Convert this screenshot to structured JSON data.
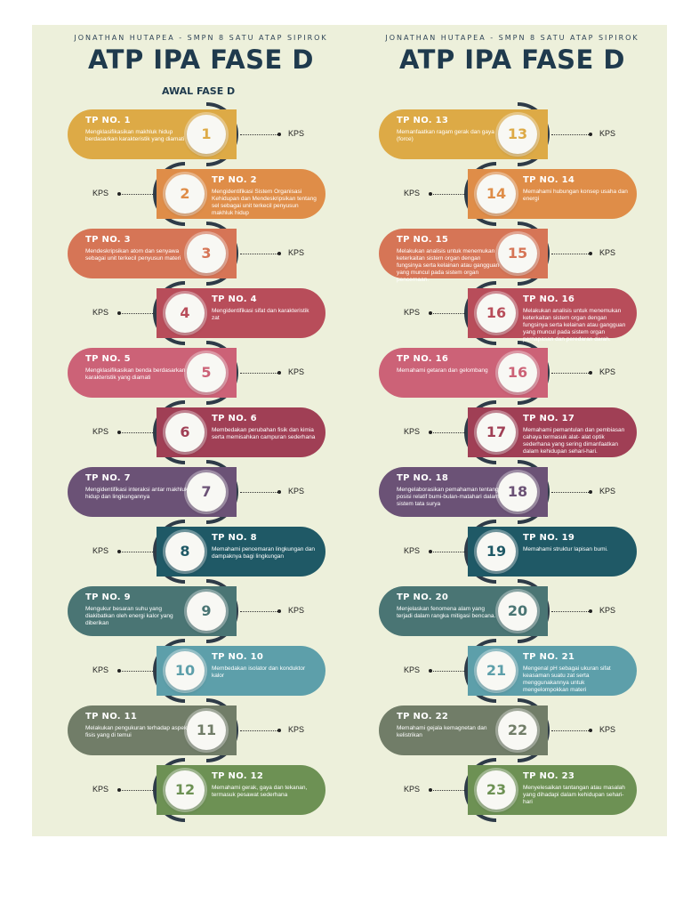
{
  "colors": [
    "#ddaa46",
    "#df8d48",
    "#d67556",
    "#b84d5a",
    "#cc6277",
    "#a03f55",
    "#6b5276",
    "#1f5966",
    "#4a7574",
    "#5d9faa",
    "#717d68",
    "#6d9154"
  ],
  "left": {
    "author": "JONATHAN HUTAPEA - SMPN 8 SATU ATAP SIPIROK",
    "title": "ATP IPA FASE D",
    "awal": "AWAL FASE D",
    "items": [
      {
        "label": "TP NO. 1",
        "desc": "Mengklasifikasikan makhluk hidup berdasarkan karakteristik yang diamati",
        "num": "1",
        "kps": "KPS"
      },
      {
        "label": "TP NO. 2",
        "desc": "Mengidentifikasi Sistem Organisasi Kehidupan dan Mendeskripsikan tentang sel sebagai unit terkecil penyusun makhluk hidup",
        "num": "2",
        "kps": "KPS"
      },
      {
        "label": "TP NO. 3",
        "desc": "Mendeskripsikan atom dan senyawa sebagai unit terkecil penyusun materi",
        "num": "3",
        "kps": "KPS"
      },
      {
        "label": "TP NO. 4",
        "desc": "Mengidentifikasi sifat dan karakteristik zat",
        "num": "4",
        "kps": "KPS"
      },
      {
        "label": "TP NO. 5",
        "desc": "Mengklasifikasikan benda berdasarkan karakteristik yang diamati",
        "num": "5",
        "kps": "KPS"
      },
      {
        "label": "TP NO. 6",
        "desc": "Membedakan perubahan fisik dan kimia serta memisahkan campuran sederhana",
        "num": "6",
        "kps": "KPS"
      },
      {
        "label": "TP NO. 7",
        "desc": "Mengidentifikasi interaksi antar makhluk hidup dan lingkungannya",
        "num": "7",
        "kps": "KPS"
      },
      {
        "label": "TP NO. 8",
        "desc": "Memahami pencemaran lingkungan dan dampaknya bagi lingkungan",
        "num": "8",
        "kps": "KPS"
      },
      {
        "label": "TP NO. 9",
        "desc": "Mengukur besaran suhu yang diakibatkan oleh energi kalor yang diberikan",
        "num": "9",
        "kps": "KPS"
      },
      {
        "label": "TP NO. 10",
        "desc": "Membedakan isolator dan konduktor kalor",
        "num": "10",
        "kps": "KPS"
      },
      {
        "label": "TP NO. 11",
        "desc": "Melakukan pengukuran terhadap aspek fisis yang di temui",
        "num": "11",
        "kps": "KPS"
      },
      {
        "label": "TP NO. 12",
        "desc": "Memahami gerak, gaya dan tekanan, termasuk pesawat sederhana",
        "num": "12",
        "kps": "KPS"
      }
    ]
  },
  "right": {
    "author": "JONATHAN HUTAPEA - SMPN 8 SATU ATAP SIPIROK",
    "title": "ATP IPA FASE D",
    "items": [
      {
        "label": "TP NO. 13",
        "desc": "Memanfaatkan ragam gerak dan gaya (force)",
        "num": "13",
        "kps": "KPS"
      },
      {
        "label": "TP NO. 14",
        "desc": "Memahami hubungan konsep usaha dan energi",
        "num": "14",
        "kps": "KPS"
      },
      {
        "label": "TP NO. 15",
        "desc": "Melakukan analisis untuk menemukan keterkaitan sistem organ dengan fungsinya serta kelainan atau gangguan yang muncul pada sistem organ pencernaan.",
        "num": "15",
        "kps": "KPS"
      },
      {
        "label": "TP NO. 16",
        "desc": "Melakukan analisis untuk menemukan keterkaitan sistem organ dengan fungsinya serta kelainan atau gangguan yang muncul pada sistem organ pernapasan dan peredaran darah.",
        "num": "16",
        "kps": "KPS"
      },
      {
        "label": "TP NO. 16",
        "desc": "Memahami getaran dan gelombang",
        "num": "16",
        "kps": "KPS"
      },
      {
        "label": "TP NO. 17",
        "desc": "Memahami pemantulan dan pembiasan cahaya termasuk alat- alat optik sederhana yang sering dimanfaatkan dalam kehidupan sehari-hari.",
        "num": "17",
        "kps": "KPS"
      },
      {
        "label": "TP NO. 18",
        "desc": "Mengelaborasikan pemahaman tentang posisi relatif bumi-bulan-matahari dalam sistem tata surya",
        "num": "18",
        "kps": "KPS"
      },
      {
        "label": "TP NO. 19",
        "desc": "Memahami struktur lapisan bumi.",
        "num": "19",
        "kps": "KPS"
      },
      {
        "label": "TP NO. 20",
        "desc": "Menjelaskan fenomena alam yang terjadi dalam rangka mitigasi bencana.",
        "num": "20",
        "kps": "KPS"
      },
      {
        "label": "TP NO. 21",
        "desc": "Mengenal pH sebagai ukuran sifat keasaman suatu zat serta menggunakannya untuk mengelompokkan materi",
        "num": "21",
        "kps": "KPS"
      },
      {
        "label": "TP NO. 22",
        "desc": "Memahami gejala kemagnetan dan kelistrikan",
        "num": "22",
        "kps": "KPS"
      },
      {
        "label": "TP NO. 23",
        "desc": "Menyelesaikan tantangan atau masalah yang dihadapi dalam kehidupan sehari-hari",
        "num": "23",
        "kps": "KPS"
      }
    ]
  }
}
